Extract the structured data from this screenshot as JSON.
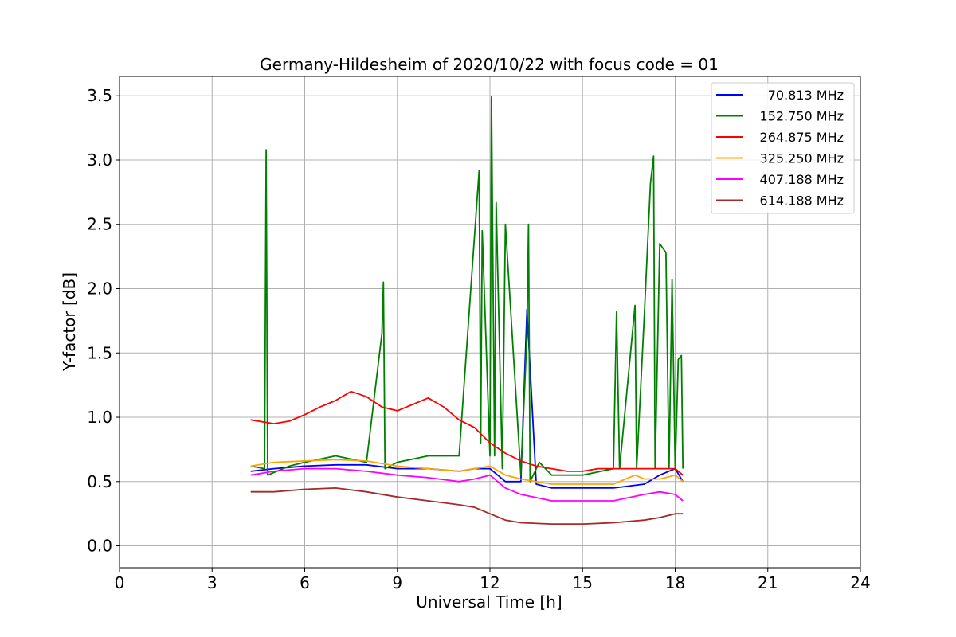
{
  "chart_data": {
    "type": "line",
    "title": "Germany-Hildesheim of 2020/10/22 with focus code = 01",
    "xlabel": "Universal Time [h]",
    "ylabel": "Y-factor [dB]",
    "xlim": [
      0,
      24
    ],
    "ylim": [
      -0.17,
      3.65
    ],
    "xticks": [
      0,
      3,
      6,
      9,
      12,
      15,
      18,
      21,
      24
    ],
    "xtick_labels": [
      "0",
      "3",
      "6",
      "9",
      "12",
      "15",
      "18",
      "21",
      "24"
    ],
    "yticks": [
      0.0,
      0.5,
      1.0,
      1.5,
      2.0,
      2.5,
      3.0,
      3.5
    ],
    "ytick_labels": [
      "0.0",
      "0.5",
      "1.0",
      "1.5",
      "2.0",
      "2.5",
      "3.0",
      "3.5"
    ],
    "grid": true,
    "legend_position": "top-right",
    "series": [
      {
        "name": "70.813 MHz",
        "color": "#0000ff",
        "x": [
          4.25,
          5.0,
          6.0,
          7.0,
          8.0,
          9.0,
          10.0,
          11.0,
          11.5,
          12.0,
          12.5,
          13.0,
          13.2,
          13.5,
          14.0,
          15.0,
          16.0,
          17.0,
          17.5,
          18.0,
          18.25
        ],
        "y": [
          0.58,
          0.6,
          0.62,
          0.63,
          0.63,
          0.6,
          0.6,
          0.58,
          0.6,
          0.6,
          0.5,
          0.5,
          1.84,
          0.48,
          0.45,
          0.45,
          0.45,
          0.48,
          0.55,
          0.6,
          0.5
        ]
      },
      {
        "name": "152.750 MHz",
        "color": "#008000",
        "x": [
          4.25,
          4.7,
          4.75,
          4.8,
          5.5,
          6.0,
          7.0,
          8.0,
          8.5,
          8.55,
          8.6,
          9.0,
          10.0,
          11.0,
          11.65,
          11.7,
          11.75,
          12.0,
          12.05,
          12.15,
          12.2,
          12.4,
          12.5,
          13.0,
          13.2,
          13.25,
          13.3,
          13.6,
          14.0,
          15.0,
          16.0,
          16.1,
          16.2,
          16.7,
          16.75,
          17.0,
          17.2,
          17.3,
          17.35,
          17.5,
          17.7,
          17.8,
          17.9,
          18.0,
          18.1,
          18.2,
          18.25
        ],
        "y": [
          0.62,
          0.6,
          3.08,
          0.55,
          0.62,
          0.65,
          0.7,
          0.65,
          1.65,
          2.05,
          0.6,
          0.65,
          0.7,
          0.7,
          2.92,
          0.8,
          2.45,
          0.7,
          3.49,
          0.7,
          2.67,
          0.6,
          2.5,
          0.55,
          1.65,
          2.5,
          0.5,
          0.65,
          0.55,
          0.55,
          0.6,
          1.82,
          0.6,
          1.87,
          0.6,
          1.8,
          2.82,
          3.03,
          0.6,
          2.35,
          2.28,
          0.6,
          2.07,
          0.6,
          1.45,
          1.48,
          0.6
        ]
      },
      {
        "name": "264.875 MHz",
        "color": "#ff0000",
        "x": [
          4.25,
          5.0,
          5.5,
          6.0,
          6.5,
          7.0,
          7.5,
          8.0,
          8.5,
          9.0,
          9.5,
          10.0,
          10.5,
          11.0,
          11.5,
          12.0,
          12.5,
          13.0,
          13.5,
          14.0,
          14.5,
          15.0,
          15.5,
          16.0,
          16.5,
          17.0,
          17.5,
          18.0,
          18.25
        ],
        "y": [
          0.98,
          0.95,
          0.97,
          1.02,
          1.08,
          1.13,
          1.2,
          1.16,
          1.08,
          1.05,
          1.1,
          1.15,
          1.08,
          0.98,
          0.92,
          0.8,
          0.72,
          0.66,
          0.62,
          0.6,
          0.58,
          0.58,
          0.6,
          0.6,
          0.6,
          0.6,
          0.6,
          0.6,
          0.55
        ]
      },
      {
        "name": "325.250 MHz",
        "color": "#ffa500",
        "x": [
          4.25,
          5.0,
          6.0,
          7.0,
          8.0,
          9.0,
          10.0,
          11.0,
          11.5,
          12.0,
          12.5,
          13.0,
          14.0,
          15.0,
          16.0,
          16.7,
          17.0,
          17.5,
          18.0,
          18.25
        ],
        "y": [
          0.62,
          0.65,
          0.66,
          0.67,
          0.66,
          0.62,
          0.6,
          0.58,
          0.6,
          0.62,
          0.55,
          0.52,
          0.48,
          0.48,
          0.48,
          0.55,
          0.52,
          0.52,
          0.55,
          0.5
        ]
      },
      {
        "name": "407.188 MHz",
        "color": "#ff00ff",
        "x": [
          4.25,
          5.0,
          6.0,
          7.0,
          8.0,
          9.0,
          10.0,
          11.0,
          11.5,
          12.0,
          12.5,
          13.0,
          14.0,
          15.0,
          16.0,
          17.0,
          17.5,
          18.0,
          18.25
        ],
        "y": [
          0.55,
          0.58,
          0.6,
          0.6,
          0.58,
          0.55,
          0.53,
          0.5,
          0.52,
          0.55,
          0.45,
          0.4,
          0.35,
          0.35,
          0.35,
          0.4,
          0.42,
          0.4,
          0.35
        ]
      },
      {
        "name": "614.188 MHz",
        "color": "#a52a2a",
        "x": [
          4.25,
          5.0,
          6.0,
          7.0,
          8.0,
          9.0,
          10.0,
          11.0,
          11.5,
          12.0,
          12.5,
          13.0,
          14.0,
          15.0,
          16.0,
          17.0,
          17.5,
          18.0,
          18.25
        ],
        "y": [
          0.42,
          0.42,
          0.44,
          0.45,
          0.42,
          0.38,
          0.35,
          0.32,
          0.3,
          0.25,
          0.2,
          0.18,
          0.17,
          0.17,
          0.18,
          0.2,
          0.22,
          0.25,
          0.25
        ]
      }
    ]
  }
}
